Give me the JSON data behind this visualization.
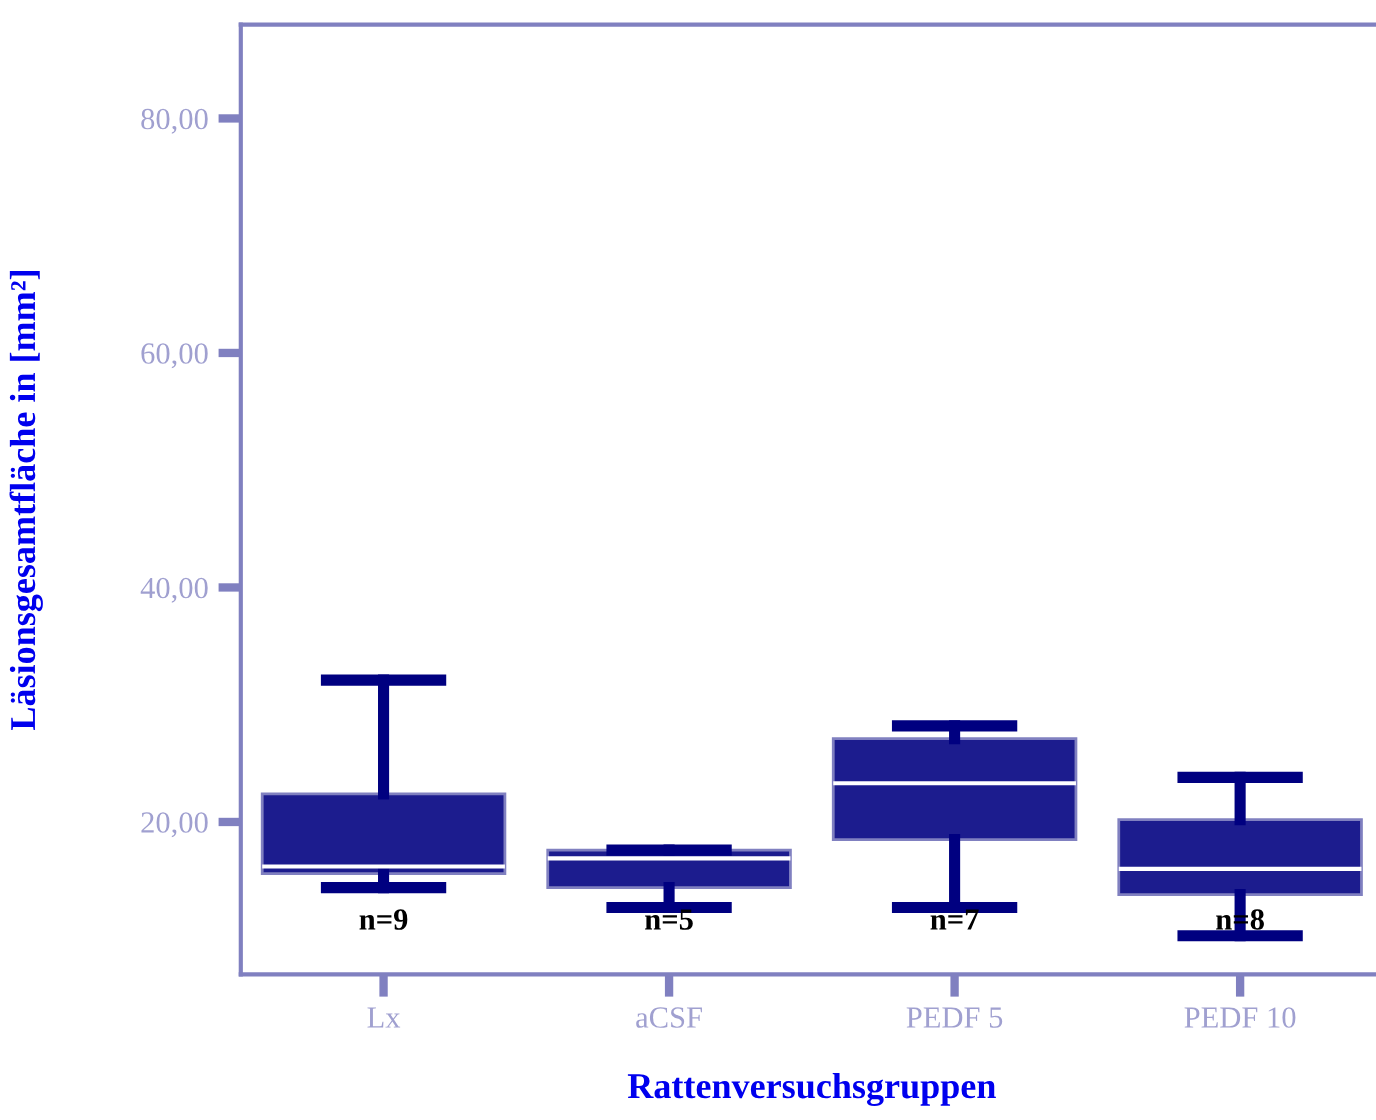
{
  "chart_data": {
    "type": "box",
    "xlabel": "Rattenversuchsgruppen",
    "ylabel": "Läsionsgesamtfläche in [mm²]",
    "categories": [
      "Lx",
      "aCSF",
      "PEDF 5",
      "PEDF 10"
    ],
    "boxes": [
      {
        "low": 14.4,
        "q1": 15.6,
        "median": 16.2,
        "q3": 22.4,
        "high": 32.1
      },
      {
        "low": 12.7,
        "q1": 14.4,
        "median": 16.9,
        "q3": 17.6,
        "high": 17.6
      },
      {
        "low": 12.7,
        "q1": 18.5,
        "median": 23.3,
        "q3": 27.1,
        "high": 28.2
      },
      {
        "low": 10.3,
        "q1": 13.8,
        "median": 16.0,
        "q3": 20.2,
        "high": 23.8
      }
    ],
    "color": "#1c1c8e",
    "annotations": [
      "n=9",
      "n=5",
      "n=7",
      "n=8"
    ],
    "ylim": [
      7,
      88
    ],
    "yticks": [
      {
        "value": 20,
        "label": "20,00"
      },
      {
        "value": 40,
        "label": "40,00"
      },
      {
        "value": 60,
        "label": "60,00"
      },
      {
        "value": 80,
        "label": "80,00"
      }
    ],
    "grid": false,
    "legend": false
  }
}
